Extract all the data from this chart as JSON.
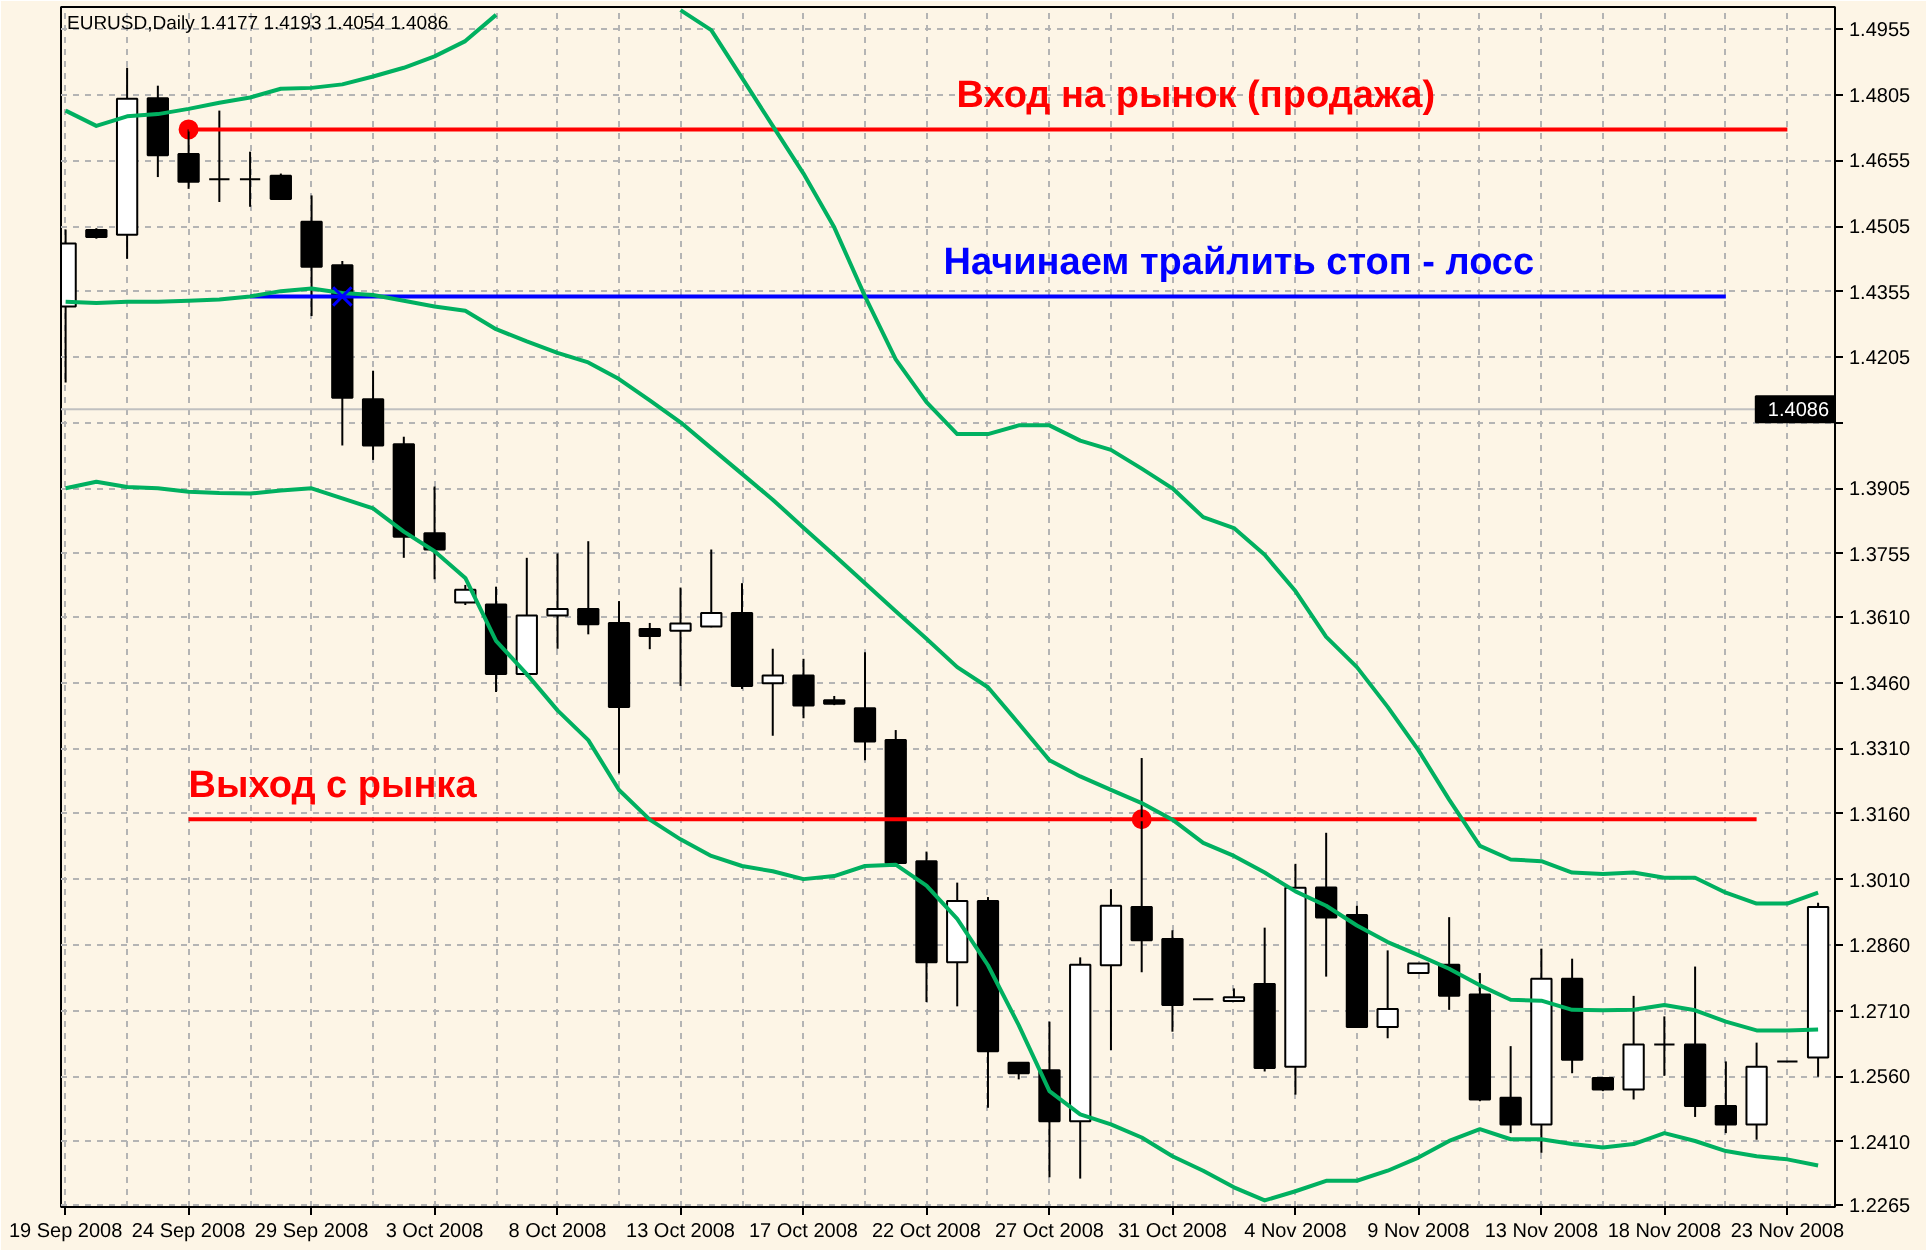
{
  "chart_data": {
    "type": "candlestick",
    "title": "EURUSD,Daily  1.4177 1.4193 1.4054 1.4086",
    "categories": [
      "19 Sep 2008",
      null,
      null,
      null,
      "24 Sep 2008",
      null,
      null,
      null,
      "29 Sep 2008",
      null,
      null,
      null,
      "3 Oct 2008",
      null,
      null,
      null,
      "8 Oct 2008",
      null,
      null,
      null,
      "13 Oct 2008",
      null,
      null,
      null,
      "17 Oct 2008",
      null,
      null,
      null,
      "22 Oct 2008",
      null,
      null,
      null,
      "27 Oct 2008",
      null,
      null,
      null,
      "31 Oct 2008",
      null,
      null,
      null,
      "4 Nov 2008",
      null,
      null,
      null,
      "9 Nov 2008",
      null,
      null,
      null,
      "13 Nov 2008",
      null,
      null,
      null,
      "18 Nov 2008",
      null,
      null,
      null,
      "23 Nov 2008",
      null
    ],
    "ohlc": [
      [
        1.4321,
        1.4497,
        1.4147,
        1.4465
      ],
      [
        1.4496,
        1.45,
        1.4476,
        1.448
      ],
      [
        1.4485,
        1.4867,
        1.443,
        1.4796
      ],
      [
        1.4797,
        1.4826,
        1.4617,
        1.4667
      ],
      [
        1.467,
        1.4726,
        1.459,
        1.4606
      ],
      [
        1.4612,
        1.4769,
        1.456,
        1.4612
      ],
      [
        1.4612,
        1.4675,
        1.4549,
        1.4612
      ],
      [
        1.462,
        1.4625,
        1.4567,
        1.4567
      ],
      [
        1.4515,
        1.4575,
        1.4299,
        1.4412
      ],
      [
        1.4415,
        1.4425,
        1.4003,
        1.4112
      ],
      [
        1.4109,
        1.4174,
        1.397,
        1.4003
      ],
      [
        1.4006,
        1.4023,
        1.3746,
        1.3794
      ],
      [
        1.3802,
        1.3909,
        1.3697,
        1.3765
      ],
      [
        1.3644,
        1.3684,
        1.3638,
        1.3673
      ],
      [
        1.3639,
        1.368,
        1.3439,
        1.348
      ],
      [
        1.348,
        1.3746,
        1.3474,
        1.3614
      ],
      [
        1.3614,
        1.3756,
        1.3538,
        1.3629
      ],
      [
        1.3629,
        1.3784,
        1.3571,
        1.3594
      ],
      [
        1.3597,
        1.3647,
        1.3253,
        1.3405
      ],
      [
        1.3583,
        1.3597,
        1.3537,
        1.3567
      ],
      [
        1.3579,
        1.3678,
        1.3453,
        1.3596
      ],
      [
        1.3589,
        1.3765,
        1.3587,
        1.362
      ],
      [
        1.362,
        1.3688,
        1.3446,
        1.3453
      ],
      [
        1.3459,
        1.3538,
        1.3339,
        1.3477
      ],
      [
        1.3477,
        1.3515,
        1.3379,
        1.3408
      ],
      [
        1.342,
        1.343,
        1.3409,
        1.3412
      ],
      [
        1.3402,
        1.353,
        1.3283,
        1.3326
      ],
      [
        1.3329,
        1.3352,
        1.3048,
        1.3048
      ],
      [
        1.3052,
        1.3074,
        1.273,
        1.2821
      ],
      [
        1.2821,
        1.3003,
        1.272,
        1.2961
      ],
      [
        1.2961,
        1.297,
        1.2488,
        1.2617
      ],
      [
        1.2591,
        1.2591,
        1.2553,
        1.2567
      ],
      [
        1.2574,
        1.2685,
        1.2329,
        1.2457
      ],
      [
        1.2457,
        1.2832,
        1.2326,
        1.2815
      ],
      [
        1.2814,
        1.2988,
        1.262,
        1.295
      ],
      [
        1.2947,
        1.3288,
        1.2798,
        1.2871
      ],
      [
        1.2874,
        1.2894,
        1.2662,
        1.2723
      ],
      [
        1.2736,
        1.2736,
        1.2736,
        1.2736
      ],
      [
        1.2732,
        1.2761,
        1.2732,
        1.2741
      ],
      [
        1.2771,
        1.29,
        1.2571,
        1.2579
      ],
      [
        1.2582,
        1.3046,
        1.2518,
        1.2991
      ],
      [
        1.2992,
        1.3117,
        1.2788,
        1.2923
      ],
      [
        1.2929,
        1.295,
        1.2673,
        1.2673
      ],
      [
        1.2673,
        1.2848,
        1.2647,
        1.2714
      ],
      [
        1.2796,
        1.2818,
        1.2796,
        1.2818
      ],
      [
        1.2815,
        1.2924,
        1.2712,
        1.2744
      ],
      [
        1.2747,
        1.2796,
        1.2503,
        1.2507
      ],
      [
        1.2511,
        1.2629,
        1.243,
        1.245
      ],
      [
        1.245,
        1.2852,
        1.2385,
        1.2783
      ],
      [
        1.2783,
        1.2829,
        1.2567,
        1.2598
      ],
      [
        1.2556,
        1.2556,
        1.2526,
        1.253
      ],
      [
        1.253,
        1.2744,
        1.2507,
        1.2633
      ],
      [
        1.2633,
        1.2697,
        1.2561,
        1.2633
      ],
      [
        1.2633,
        1.2811,
        1.2467,
        1.2492
      ],
      [
        1.2492,
        1.2594,
        1.243,
        1.245
      ],
      [
        1.245,
        1.2637,
        1.2415,
        1.2582
      ],
      [
        1.2594,
        1.2594,
        1.2594,
        1.2594
      ],
      [
        1.2603,
        1.2957,
        1.2559,
        1.2947
      ]
    ],
    "colors": [
      "#ffffff",
      "#000000",
      "#ffffff",
      "#000000",
      "#000000",
      "#000000",
      "#000000",
      "#000000",
      "#000000",
      "#000000",
      "#000000",
      "#000000",
      "#000000",
      "#ffffff",
      "#000000",
      "#ffffff",
      "#ffffff",
      "#000000",
      "#000000",
      "#000000",
      "#ffffff",
      "#ffffff",
      "#000000",
      "#ffffff",
      "#000000",
      "#000000",
      "#000000",
      "#000000",
      "#000000",
      "#ffffff",
      "#000000",
      "#000000",
      "#000000",
      "#ffffff",
      "#ffffff",
      "#000000",
      "#000000",
      "#000000",
      "#ffffff",
      "#000000",
      "#ffffff",
      "#000000",
      "#000000",
      "#ffffff",
      "#ffffff",
      "#000000",
      "#000000",
      "#000000",
      "#ffffff",
      "#000000",
      "#000000",
      "#ffffff",
      "#000000",
      "#000000",
      "#000000",
      "#ffffff",
      "#000000",
      "#ffffff"
    ],
    "ylim": [
      1.2261,
      1.5006
    ],
    "yticks": [
      1.4955,
      1.4805,
      1.4655,
      1.4505,
      1.4355,
      1.4205,
      {
        "value": 1.4055,
        "label": null
      },
      1.3905,
      1.3755,
      {
        "value": 1.361,
        "label": "1.3610"
      },
      {
        "value": 1.346,
        "label": "1.3460"
      },
      {
        "value": 1.331,
        "label": "1.3310"
      },
      {
        "value": 1.316,
        "label": "1.3160"
      },
      {
        "value": 1.301,
        "label": "1.3010"
      },
      {
        "value": 1.286,
        "label": "1.2860"
      },
      {
        "value": 1.271,
        "label": "1.2710"
      },
      {
        "value": 1.256,
        "label": "1.2560"
      },
      {
        "value": 1.241,
        "label": "1.2410"
      },
      1.2265
    ],
    "grid": true,
    "series": [
      {
        "type": "line",
        "color": "#00b060",
        "values": [
          1.4769,
          1.4734,
          1.4756,
          1.4761,
          1.4773,
          1.4787,
          1.4799,
          1.4819,
          1.4821,
          1.4829,
          1.4847,
          1.4867,
          1.4893,
          1.4928,
          1.4988,
          null,
          null,
          null,
          null,
          null,
          1.4999,
          1.4953,
          1.4844,
          1.4734,
          1.4625,
          1.4502,
          1.4344,
          1.42,
          1.4102,
          1.4029,
          1.4029,
          1.4049,
          1.4049,
          1.4014,
          1.3993,
          1.395,
          1.3905,
          1.3839,
          1.3814,
          1.3753,
          1.367,
          1.3565,
          1.3496,
          1.3405,
          1.3306,
          1.3193,
          1.3087,
          1.3056,
          1.3052,
          1.3026,
          1.3023,
          1.3026,
          1.3014,
          1.3014,
          1.298,
          1.2955,
          1.2955,
          1.298
        ]
      },
      {
        "type": "line",
        "color": "#00b060",
        "values": [
          1.4332,
          1.4329,
          1.4332,
          1.4332,
          1.4334,
          1.4337,
          1.4344,
          1.4356,
          1.4362,
          1.4352,
          1.4347,
          1.4334,
          1.4321,
          1.4311,
          1.4269,
          1.4241,
          1.4215,
          1.4193,
          1.4155,
          1.4106,
          1.4056,
          1.3997,
          1.3938,
          1.3879,
          1.3815,
          1.3752,
          1.3688,
          1.3624,
          1.3561,
          1.3496,
          1.345,
          1.3367,
          1.3283,
          1.3246,
          1.3215,
          1.3185,
          1.3147,
          1.3094,
          1.3064,
          1.3026,
          1.2983,
          1.295,
          1.2905,
          1.2867,
          1.2837,
          1.2806,
          1.2768,
          1.2735,
          1.2733,
          1.2712,
          1.2711,
          1.2712,
          1.2723,
          1.2711,
          1.2685,
          1.2665,
          1.2665,
          1.2667
        ]
      },
      {
        "type": "line",
        "color": "#00b060",
        "values": [
          1.3905,
          1.392,
          1.3908,
          1.3905,
          1.3897,
          1.3894,
          1.3893,
          1.39,
          1.3905,
          1.3882,
          1.3859,
          1.3806,
          1.3761,
          1.37,
          1.3556,
          1.348,
          1.3397,
          1.3329,
          1.3215,
          1.3147,
          1.3102,
          1.3064,
          1.3041,
          1.3029,
          1.3011,
          1.3018,
          1.3041,
          1.3044,
          1.2996,
          1.292,
          1.2814,
          1.2677,
          1.2526,
          1.2473,
          1.245,
          1.242,
          1.2377,
          1.2344,
          1.2306,
          1.2276,
          1.2297,
          1.2321,
          1.2321,
          1.2344,
          1.2374,
          1.2412,
          1.2439,
          1.2416,
          1.2416,
          1.2405,
          1.2397,
          1.2405,
          1.243,
          1.2412,
          1.2389,
          1.2377,
          1.237,
          1.2356
        ]
      },
      {
        "type": "line",
        "name": "Вход на рынок (продажа)",
        "color": "#ff0000",
        "values": [
          null,
          null,
          null,
          null,
          1.4726,
          1.4726,
          1.4726,
          1.4726,
          1.4726,
          1.4726,
          1.4726,
          1.4726,
          1.4726,
          1.4726,
          1.4726,
          1.4726,
          1.4726,
          1.4726,
          1.4726,
          1.4726,
          1.4726,
          1.4726,
          1.4726,
          1.4726,
          1.4726,
          1.4726,
          1.4726,
          1.4726,
          1.4726,
          1.4726,
          1.4726,
          1.4726,
          1.4726,
          1.4726,
          1.4726,
          1.4726,
          1.4726,
          1.4726,
          1.4726,
          1.4726,
          1.4726,
          1.4726,
          1.4726,
          1.4726,
          1.4726,
          1.4726,
          1.4726,
          1.4726,
          1.4726,
          1.4726,
          1.4726,
          1.4726,
          1.4726,
          1.4726,
          1.4726,
          1.4726,
          1.4726,
          null
        ]
      },
      {
        "type": "line",
        "name": "Начинаем трайлить стоп - лосс",
        "color": "#0000ff",
        "values": [
          null,
          null,
          null,
          null,
          null,
          null,
          1.4344,
          1.4344,
          1.4344,
          1.4344,
          1.4344,
          1.4344,
          1.4344,
          1.4344,
          1.4344,
          1.4344,
          1.4344,
          1.4344,
          1.4344,
          1.4344,
          1.4344,
          1.4344,
          1.4344,
          1.4344,
          1.4344,
          1.4344,
          1.4344,
          1.4344,
          1.4344,
          1.4344,
          1.4344,
          1.4344,
          1.4344,
          1.4344,
          1.4344,
          1.4344,
          1.4344,
          1.4344,
          1.4344,
          1.4344,
          1.4344,
          1.4344,
          1.4344,
          1.4344,
          1.4344,
          1.4344,
          1.4344,
          1.4344,
          1.4344,
          1.4344,
          1.4344,
          1.4344,
          1.4344,
          1.4344,
          1.4344,
          null,
          null,
          null
        ]
      },
      {
        "type": "line",
        "name": "Выход с рынка",
        "color": "#ff0000",
        "values": [
          null,
          null,
          null,
          null,
          1.3148,
          1.3148,
          1.3148,
          1.3148,
          1.3148,
          1.3148,
          1.3148,
          1.3148,
          1.3148,
          1.3148,
          1.3148,
          1.3148,
          1.3148,
          1.3148,
          1.3148,
          1.3148,
          1.3148,
          1.3148,
          1.3148,
          1.3148,
          1.3148,
          1.3148,
          1.3148,
          1.3148,
          1.3148,
          1.3148,
          1.3148,
          1.3148,
          1.3148,
          1.3148,
          1.3148,
          1.3148,
          1.3148,
          1.3148,
          1.3148,
          1.3148,
          1.3148,
          1.3148,
          1.3148,
          1.3148,
          1.3148,
          1.3148,
          1.3148,
          1.3148,
          1.3148,
          1.3148,
          1.3148,
          1.3148,
          1.3148,
          1.3148,
          1.3148,
          1.3148,
          null,
          null
        ]
      },
      {
        "type": "scatter",
        "marker": "circle",
        "color": "#ff0000",
        "values": [
          null,
          null,
          null,
          null,
          1.4726,
          null,
          null,
          null,
          null,
          null,
          null,
          null,
          null,
          null,
          null,
          null,
          null,
          null,
          null,
          null,
          null,
          null,
          null,
          null,
          null,
          null,
          null,
          null,
          null,
          null,
          null,
          null,
          null,
          null,
          null,
          null,
          null,
          null,
          null,
          null,
          null,
          null,
          null,
          null,
          null,
          null,
          null,
          null,
          null,
          null,
          null,
          null,
          null,
          null,
          null,
          null,
          null,
          null
        ]
      },
      {
        "type": "scatter",
        "marker": "circle",
        "color": "#ff0000",
        "values": [
          null,
          null,
          null,
          null,
          null,
          null,
          null,
          null,
          null,
          null,
          null,
          null,
          null,
          null,
          null,
          null,
          null,
          null,
          null,
          null,
          null,
          null,
          null,
          null,
          null,
          null,
          null,
          null,
          null,
          null,
          null,
          null,
          null,
          null,
          null,
          1.3148,
          null,
          null,
          null,
          null,
          null,
          null,
          null,
          null,
          null,
          null,
          null,
          null,
          null,
          null,
          null,
          null,
          null,
          null,
          null,
          null,
          null,
          null
        ]
      },
      {
        "type": "scatter",
        "marker": "cross",
        "color": "#0000ff",
        "values": [
          null,
          null,
          null,
          null,
          null,
          null,
          null,
          null,
          null,
          1.4344,
          null,
          null,
          null,
          null,
          null,
          null,
          null,
          null,
          null,
          null,
          null,
          null,
          null,
          null,
          null,
          null,
          null,
          null,
          null,
          null,
          null,
          null,
          null,
          null,
          null,
          null,
          null,
          null,
          null,
          null,
          null,
          null,
          null,
          null,
          null,
          null,
          null,
          null,
          null,
          null,
          null,
          null,
          null,
          null,
          null,
          null,
          null,
          null
        ]
      }
    ],
    "ref_lines": [
      {
        "axis": "y",
        "value": 1.4086,
        "label": "1.4086",
        "color": "#c0c0c0"
      }
    ]
  }
}
